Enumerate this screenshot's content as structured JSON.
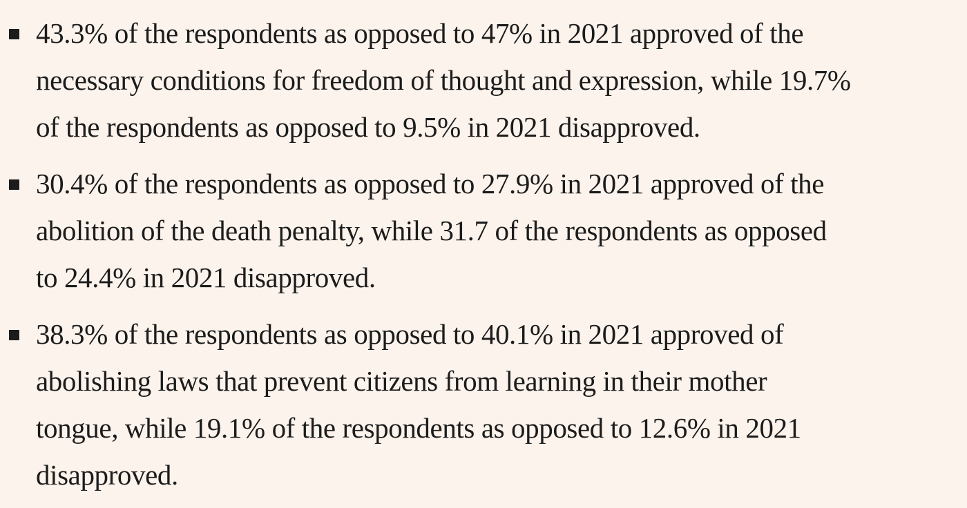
{
  "items": [
    {
      "lines": [
        "43.3% of the respondents as opposed to 47% in 2021 approved of the",
        "necessary conditions for freedom of thought and expression, while 19.7%",
        "of the respondents as opposed to 9.5% in 2021 disapproved."
      ]
    },
    {
      "lines": [
        "30.4% of the respondents as opposed to 27.9% in 2021 approved of the",
        "abolition of the death penalty, while 31.7 of the respondents as opposed",
        "to 24.4% in 2021 disapproved."
      ]
    },
    {
      "lines": [
        "38.3% of the respondents as opposed to 40.1% in 2021 approved of",
        "abolishing laws that prevent citizens from learning in their mother",
        "tongue, while 19.1% of the respondents as opposed to 12.6% in 2021",
        "disapproved."
      ]
    }
  ]
}
